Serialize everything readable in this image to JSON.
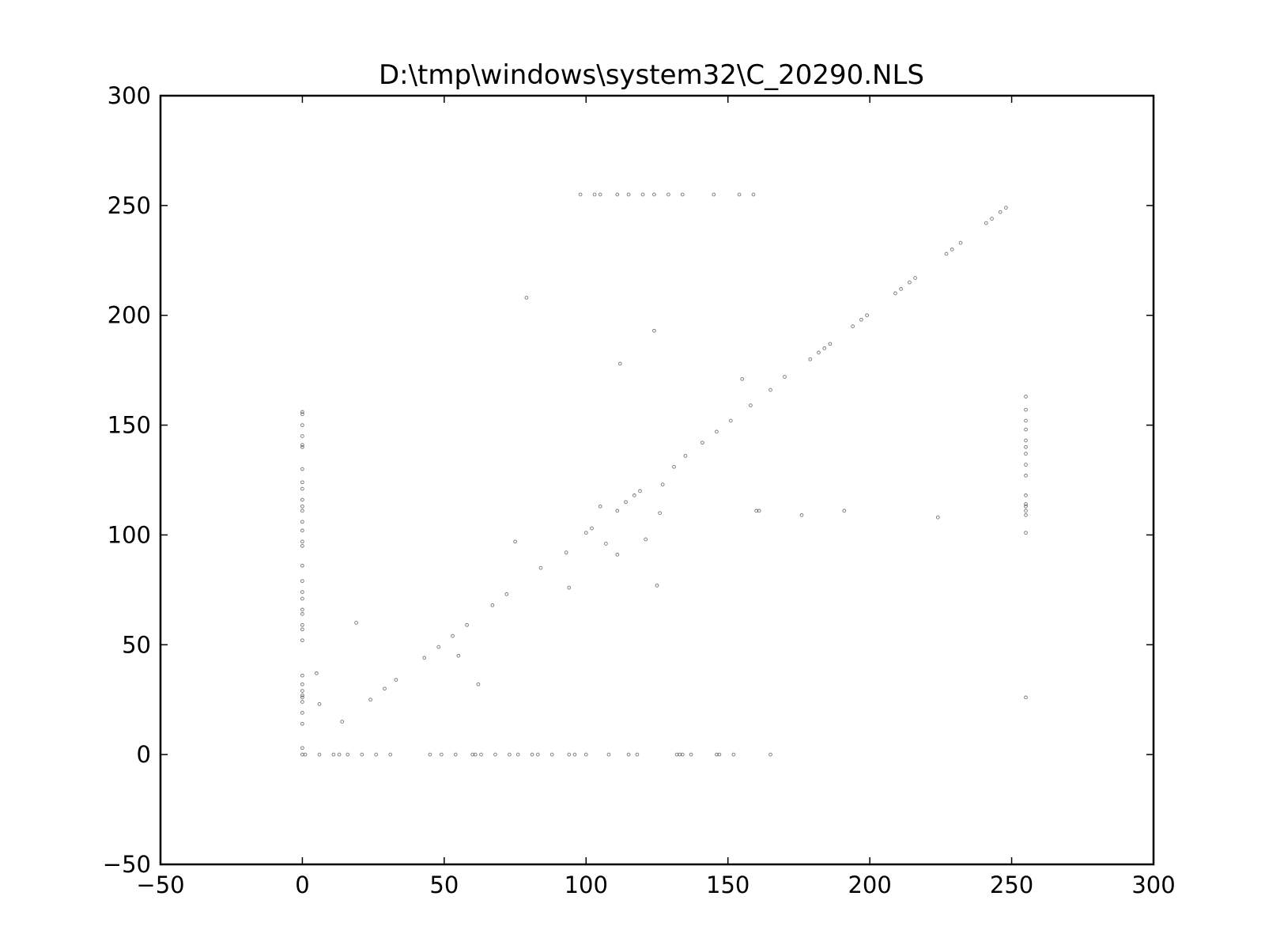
{
  "chart_data": {
    "type": "scatter",
    "title": "D:\\tmp\\windows\\system32\\C_20290.NLS",
    "xlabel": "",
    "ylabel": "",
    "xlim": [
      -50,
      300
    ],
    "ylim": [
      -50,
      300
    ],
    "x_ticks": [
      -50,
      0,
      50,
      100,
      150,
      200,
      250,
      300
    ],
    "y_ticks": [
      -50,
      0,
      50,
      100,
      150,
      200,
      250,
      300
    ],
    "x_tick_labels": [
      "−50",
      "0",
      "50",
      "100",
      "150",
      "200",
      "250",
      "300"
    ],
    "y_tick_labels": [
      "−50",
      "0",
      "50",
      "100",
      "150",
      "200",
      "250",
      "300"
    ],
    "grid": false,
    "legend": "none",
    "marker_color": "#000000",
    "points": [
      [
        0,
        0
      ],
      [
        1,
        0
      ],
      [
        6,
        0
      ],
      [
        11,
        0
      ],
      [
        13,
        0
      ],
      [
        16,
        0
      ],
      [
        21,
        0
      ],
      [
        26,
        0
      ],
      [
        31,
        0
      ],
      [
        45,
        0
      ],
      [
        49,
        0
      ],
      [
        54,
        0
      ],
      [
        60,
        0
      ],
      [
        61,
        0
      ],
      [
        63,
        0
      ],
      [
        68,
        0
      ],
      [
        73,
        0
      ],
      [
        76,
        0
      ],
      [
        81,
        0
      ],
      [
        83,
        0
      ],
      [
        88,
        0
      ],
      [
        94,
        0
      ],
      [
        96,
        0
      ],
      [
        100,
        0
      ],
      [
        108,
        0
      ],
      [
        115,
        0
      ],
      [
        118,
        0
      ],
      [
        132,
        0
      ],
      [
        133,
        0
      ],
      [
        134,
        0
      ],
      [
        137,
        0
      ],
      [
        146,
        0
      ],
      [
        147,
        0
      ],
      [
        152,
        0
      ],
      [
        165,
        0
      ],
      [
        0,
        3
      ],
      [
        0,
        14
      ],
      [
        0,
        19
      ],
      [
        0,
        24
      ],
      [
        0,
        26
      ],
      [
        0,
        27
      ],
      [
        0,
        29
      ],
      [
        0,
        32
      ],
      [
        0,
        36
      ],
      [
        0,
        52
      ],
      [
        0,
        57
      ],
      [
        0,
        59
      ],
      [
        0,
        64
      ],
      [
        0,
        66
      ],
      [
        0,
        71
      ],
      [
        0,
        74
      ],
      [
        0,
        79
      ],
      [
        0,
        86
      ],
      [
        0,
        95
      ],
      [
        0,
        97
      ],
      [
        0,
        102
      ],
      [
        0,
        106
      ],
      [
        0,
        111
      ],
      [
        0,
        113
      ],
      [
        0,
        116
      ],
      [
        0,
        121
      ],
      [
        0,
        124
      ],
      [
        0,
        130
      ],
      [
        0,
        140
      ],
      [
        0,
        141
      ],
      [
        0,
        145
      ],
      [
        0,
        150
      ],
      [
        0,
        155
      ],
      [
        0,
        156
      ],
      [
        5,
        37
      ],
      [
        6,
        23
      ],
      [
        14,
        15
      ],
      [
        19,
        60
      ],
      [
        24,
        25
      ],
      [
        29,
        30
      ],
      [
        33,
        34
      ],
      [
        43,
        44
      ],
      [
        48,
        49
      ],
      [
        53,
        54
      ],
      [
        55,
        45
      ],
      [
        58,
        59
      ],
      [
        62,
        32
      ],
      [
        67,
        68
      ],
      [
        72,
        73
      ],
      [
        75,
        97
      ],
      [
        79,
        208
      ],
      [
        84,
        85
      ],
      [
        93,
        92
      ],
      [
        94,
        76
      ],
      [
        100,
        101
      ],
      [
        102,
        103
      ],
      [
        105,
        113
      ],
      [
        107,
        96
      ],
      [
        111,
        91
      ],
      [
        111,
        111
      ],
      [
        112,
        178
      ],
      [
        114,
        115
      ],
      [
        117,
        118
      ],
      [
        119,
        120
      ],
      [
        121,
        98
      ],
      [
        124,
        193
      ],
      [
        125,
        77
      ],
      [
        126,
        110
      ],
      [
        127,
        123
      ],
      [
        131,
        131
      ],
      [
        135,
        136
      ],
      [
        141,
        142
      ],
      [
        146,
        147
      ],
      [
        151,
        152
      ],
      [
        155,
        171
      ],
      [
        158,
        159
      ],
      [
        160,
        111
      ],
      [
        161,
        111
      ],
      [
        165,
        166
      ],
      [
        170,
        172
      ],
      [
        176,
        109
      ],
      [
        179,
        180
      ],
      [
        182,
        183
      ],
      [
        184,
        185
      ],
      [
        186,
        187
      ],
      [
        191,
        111
      ],
      [
        194,
        195
      ],
      [
        197,
        198
      ],
      [
        199,
        200
      ],
      [
        209,
        210
      ],
      [
        211,
        212
      ],
      [
        214,
        215
      ],
      [
        216,
        217
      ],
      [
        224,
        108
      ],
      [
        227,
        228
      ],
      [
        229,
        230
      ],
      [
        232,
        233
      ],
      [
        241,
        242
      ],
      [
        243,
        244
      ],
      [
        246,
        247
      ],
      [
        248,
        249
      ],
      [
        98,
        255
      ],
      [
        103,
        255
      ],
      [
        105,
        255
      ],
      [
        111,
        255
      ],
      [
        115,
        255
      ],
      [
        120,
        255
      ],
      [
        124,
        255
      ],
      [
        129,
        255
      ],
      [
        134,
        255
      ],
      [
        145,
        255
      ],
      [
        154,
        255
      ],
      [
        159,
        255
      ],
      [
        255,
        26
      ],
      [
        255,
        101
      ],
      [
        255,
        109
      ],
      [
        255,
        111
      ],
      [
        255,
        113
      ],
      [
        255,
        114
      ],
      [
        255,
        118
      ],
      [
        255,
        127
      ],
      [
        255,
        132
      ],
      [
        255,
        137
      ],
      [
        255,
        140
      ],
      [
        255,
        143
      ],
      [
        255,
        148
      ],
      [
        255,
        152
      ],
      [
        255,
        157
      ],
      [
        255,
        163
      ]
    ]
  }
}
